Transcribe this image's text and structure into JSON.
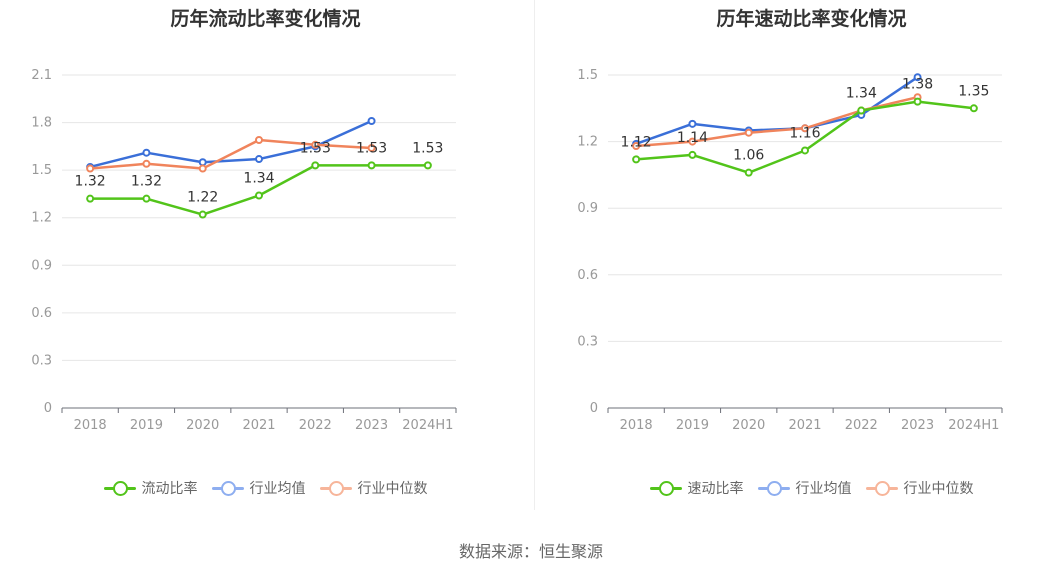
{
  "footer": {
    "source": "数据来源：恒生聚源"
  },
  "colors": {
    "primary": "#52c41a",
    "average": "#3a6fd8",
    "median": "#f0845c",
    "average_legend": "#8eaef0",
    "median_legend": "#f7b59a"
  },
  "chart_data": [
    {
      "type": "line",
      "title": "历年流动比率变化情况",
      "categories": [
        "2018",
        "2019",
        "2020",
        "2021",
        "2022",
        "2023",
        "2024H1"
      ],
      "ylim": [
        0,
        2.1
      ],
      "yticks": [
        "0",
        "0.3",
        "0.6",
        "0.9",
        "1.2",
        "1.5",
        "1.8",
        "2.1"
      ],
      "grid": true,
      "legend_position": "bottom",
      "series": [
        {
          "name": "流动比率",
          "key": "primary",
          "values": [
            1.32,
            1.32,
            1.22,
            1.34,
            1.53,
            1.53,
            1.53
          ],
          "labels": [
            "1.32",
            "1.32",
            "1.22",
            "1.34",
            "1.53",
            "1.53",
            "1.53"
          ]
        },
        {
          "name": "行业均值",
          "key": "average",
          "values": [
            1.52,
            1.61,
            1.55,
            1.57,
            1.65,
            1.81,
            null
          ]
        },
        {
          "name": "行业中位数",
          "key": "median",
          "values": [
            1.51,
            1.54,
            1.51,
            1.69,
            1.66,
            1.64,
            null
          ]
        }
      ]
    },
    {
      "type": "line",
      "title": "历年速动比率变化情况",
      "categories": [
        "2018",
        "2019",
        "2020",
        "2021",
        "2022",
        "2023",
        "2024H1"
      ],
      "ylim": [
        0,
        1.5
      ],
      "yticks": [
        "0",
        "0.3",
        "0.6",
        "0.9",
        "1.2",
        "1.5"
      ],
      "grid": true,
      "legend_position": "bottom",
      "series": [
        {
          "name": "速动比率",
          "key": "primary",
          "values": [
            1.12,
            1.14,
            1.06,
            1.16,
            1.34,
            1.38,
            1.35
          ],
          "labels": [
            "1.12",
            "1.14",
            "1.06",
            "1.16",
            "1.34",
            "1.38",
            "1.35"
          ]
        },
        {
          "name": "行业均值",
          "key": "average",
          "values": [
            1.19,
            1.28,
            1.25,
            1.26,
            1.32,
            1.49,
            null
          ]
        },
        {
          "name": "行业中位数",
          "key": "median",
          "values": [
            1.18,
            1.2,
            1.24,
            1.26,
            1.34,
            1.4,
            null
          ]
        }
      ]
    }
  ]
}
